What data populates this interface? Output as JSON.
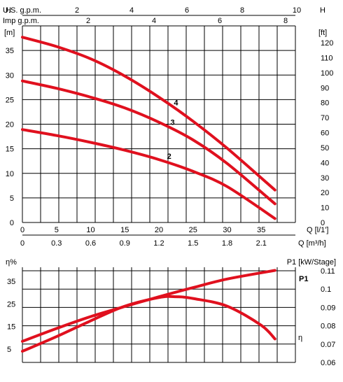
{
  "chart_data": [
    {
      "type": "line",
      "title": "",
      "x_axes": {
        "usgpm": {
          "label": "U.S. g.p.m.",
          "ticks": [
            "2",
            "4",
            "6",
            "8",
            "10"
          ]
        },
        "impgpm": {
          "label": "Imp g.p.m.",
          "ticks": [
            "2",
            "4",
            "6",
            "8"
          ]
        },
        "lpm": {
          "label": "Q [l/1']",
          "ticks": [
            "0",
            "5",
            "10",
            "15",
            "20",
            "25",
            "30",
            "35"
          ]
        },
        "m3h": {
          "label": "Q [m³/h]",
          "ticks": [
            "0",
            "0.3",
            "0.6",
            "0.9",
            "1.2",
            "1.5",
            "1.8",
            "2.1"
          ]
        }
      },
      "y_axes": {
        "m": {
          "unit_label": "H",
          "unit_sub": "[m]",
          "ticks": [
            "0",
            "5",
            "10",
            "15",
            "20",
            "25",
            "30",
            "35"
          ]
        },
        "ft": {
          "unit_label": "H",
          "unit_sub": "[ft]",
          "ticks": [
            "0",
            "10",
            "20",
            "30",
            "40",
            "50",
            "60",
            "70",
            "80",
            "90",
            "100",
            "110",
            "120"
          ]
        }
      },
      "xlim": [
        0,
        40
      ],
      "ylim": [
        0,
        40
      ],
      "grid": true,
      "series": [
        {
          "name": "4",
          "x": [
            0,
            5,
            10,
            15,
            20,
            25,
            30,
            37
          ],
          "y": [
            37.7,
            35.8,
            33.3,
            29.8,
            25.5,
            20.6,
            15.1,
            6.6
          ]
        },
        {
          "name": "3",
          "x": [
            0,
            5,
            10,
            15,
            20,
            25,
            30,
            37
          ],
          "y": [
            28.8,
            27.3,
            25.5,
            23.3,
            20.4,
            16.8,
            12.0,
            3.8
          ]
        },
        {
          "name": "2",
          "x": [
            0,
            5,
            10,
            15,
            20,
            25,
            30,
            37
          ],
          "y": [
            18.9,
            17.7,
            16.3,
            14.7,
            12.8,
            10.4,
            7.3,
            0.8
          ]
        }
      ]
    },
    {
      "type": "line",
      "title": "",
      "y_axes": {
        "eff": {
          "unit_label": "η%",
          "ticks": [
            "5",
            "15",
            "25",
            "35"
          ]
        },
        "power": {
          "unit_label": "P1 [kW/Stage]",
          "ticks": [
            "0.06",
            "0.07",
            "0.08",
            "0.09",
            "0.1",
            "0.11"
          ]
        }
      },
      "xlim": [
        0,
        40
      ],
      "grid": true,
      "series": [
        {
          "name": "P1",
          "axis": "power",
          "x": [
            0,
            5,
            10,
            15,
            20,
            25,
            30,
            37
          ],
          "y": [
            0.0715,
            0.0785,
            0.085,
            0.0905,
            0.0958,
            0.1008,
            0.1055,
            0.1102
          ]
        },
        {
          "name": "η",
          "axis": "eff",
          "x": [
            0,
            5,
            10,
            15,
            20,
            22.5,
            25,
            30,
            35,
            37
          ],
          "y": [
            4,
            10.5,
            17.5,
            24,
            27.8,
            28.2,
            27.4,
            24,
            15.5,
            9.5
          ]
        }
      ]
    }
  ]
}
